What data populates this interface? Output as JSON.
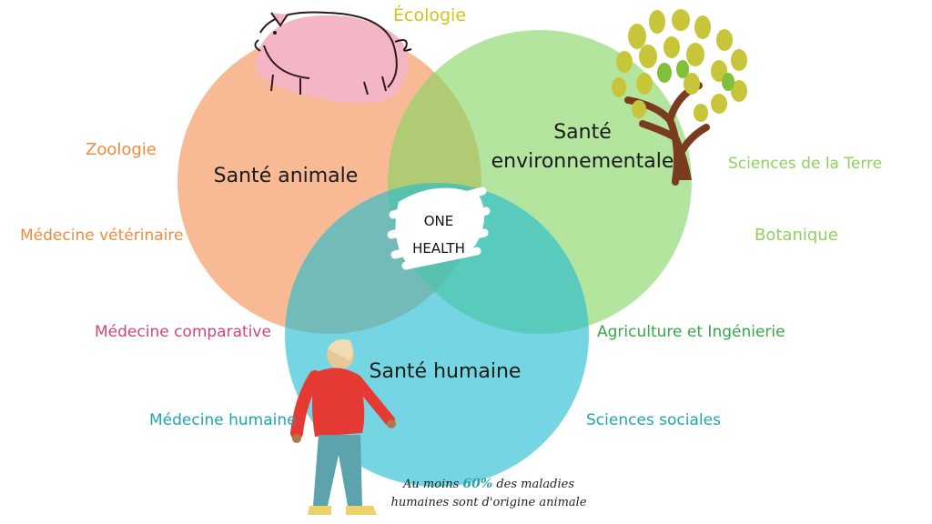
{
  "circles": {
    "animal": {
      "title": "Santé animale",
      "color": "#f59a62"
    },
    "environment": {
      "title_line1": "Santé",
      "title_line2": "environnementale",
      "color": "#86d563"
    },
    "human": {
      "title": "Santé humaine",
      "color": "#22bcd0"
    }
  },
  "center": {
    "line1": "ONE",
    "line2": "HEALTH"
  },
  "disciplines": {
    "ecologie": {
      "text": "Écologie",
      "color": "#d4c21a"
    },
    "zoologie": {
      "text": "Zoologie",
      "color": "#f08a3e"
    },
    "medecine_veterinaire": {
      "text": "Médecine vétérinaire",
      "color": "#f08a3e"
    },
    "medecine_comparative": {
      "text": "Médecine comparative",
      "color": "#d0467a"
    },
    "medecine_humaine": {
      "text": "Médecine humaine",
      "color": "#1ea7ad"
    },
    "sciences_terre": {
      "text": "Sciences de la Terre",
      "color": "#8fd15e"
    },
    "botanique": {
      "text": "Botanique",
      "color": "#8fd15e"
    },
    "agriculture": {
      "text": "Agriculture et Ingénierie",
      "color": "#37a84a"
    },
    "sciences_sociales": {
      "text": "Sciences sociales",
      "color": "#1ea7ad"
    }
  },
  "note": {
    "prefix": "Au moins ",
    "percent": "60%",
    "suffix": " des maladies",
    "line2": "humaines sont d'origine animale"
  },
  "icons": {
    "animal": "pig-icon",
    "environment": "tree-icon",
    "human": "person-icon"
  }
}
